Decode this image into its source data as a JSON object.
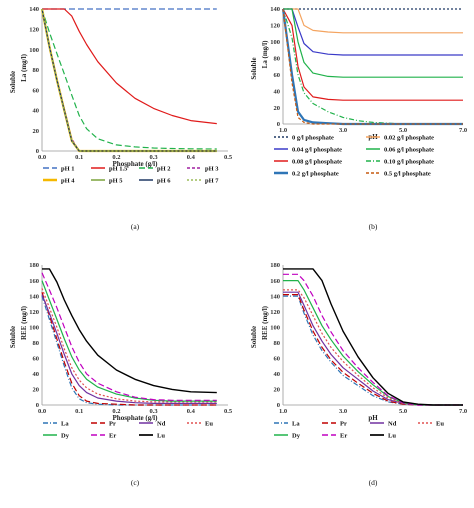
{
  "chart_data": [
    {
      "type": "line",
      "panel_label": "(a)",
      "xlabel": "Phosphate  (g/l)",
      "ylabel_top": "La  (mg/l)",
      "ylabel_bottom": "Soluble",
      "xlim": [
        0,
        0.5
      ],
      "ylim": [
        0,
        140
      ],
      "xticks": [
        "0.0",
        "0.1",
        "0.2",
        "0.3",
        "0.4",
        "0.5"
      ],
      "yticks": [
        "0",
        "20",
        "40",
        "60",
        "80",
        "100",
        "120",
        "140"
      ],
      "x": [
        0,
        0.02,
        0.04,
        0.06,
        0.08,
        0.1,
        0.12,
        0.15,
        0.2,
        0.25,
        0.3,
        0.35,
        0.4,
        0.47
      ],
      "legend_columns": 4,
      "series": [
        {
          "name": "pH 1",
          "color": "#4472c4",
          "dash": "6 3",
          "width": 1.2,
          "values": [
            140,
            140,
            140,
            140,
            140,
            140,
            140,
            140,
            140,
            140,
            140,
            140,
            140,
            140
          ]
        },
        {
          "name": "pH 1.5",
          "color": "#e01a1a",
          "dash": "",
          "width": 1.2,
          "values": [
            140,
            140,
            140,
            140,
            133,
            118,
            105,
            88,
            67,
            52,
            42,
            35,
            30,
            27
          ]
        },
        {
          "name": "pH 2",
          "color": "#21b24b",
          "dash": "6 3",
          "width": 1.2,
          "values": [
            140,
            117,
            96,
            76,
            55,
            35,
            22,
            12,
            6,
            4,
            3,
            2.5,
            2.2,
            2
          ]
        },
        {
          "name": "pH 3",
          "color": "#a020a0",
          "dash": "3 2",
          "width": 1.2,
          "values": [
            140,
            104,
            72,
            42,
            12,
            0,
            0,
            0,
            0,
            0,
            0,
            0,
            0,
            0
          ]
        },
        {
          "name": "pH 4",
          "color": "#f5b800",
          "dash": "",
          "width": 2.2,
          "values": [
            140,
            103,
            70,
            40,
            10,
            0,
            0,
            0,
            0,
            0,
            0,
            0,
            0,
            0
          ]
        },
        {
          "name": "pH 5",
          "color": "#7aa23a",
          "dash": "",
          "width": 1.2,
          "values": [
            140,
            103,
            70,
            40,
            10,
            0,
            0,
            0,
            0,
            0,
            0,
            0,
            0,
            0
          ]
        },
        {
          "name": "pH 6",
          "color": "#1f3864",
          "dash": "",
          "width": 1.2,
          "values": [
            140,
            103,
            70,
            40,
            10,
            0,
            0,
            0,
            0,
            0,
            0,
            0,
            0,
            0
          ]
        },
        {
          "name": "pH 7",
          "color": "#9bbb59",
          "dash": "2 2",
          "width": 1.2,
          "values": [
            140,
            103,
            70,
            40,
            10,
            0,
            0,
            0,
            0,
            0,
            0,
            0,
            0,
            0
          ]
        }
      ]
    },
    {
      "type": "line",
      "panel_label": "(b)",
      "xlabel": "pH",
      "ylabel_top": "La  (mg/l)",
      "ylabel_bottom": "Soluble",
      "xlim": [
        1,
        7
      ],
      "ylim": [
        0,
        140
      ],
      "xticks": [
        "1.0",
        "3.0",
        "5.0",
        "7.0"
      ],
      "yticks": [
        "0",
        "20",
        "40",
        "60",
        "80",
        "100",
        "120",
        "140"
      ],
      "x": [
        1,
        1.3,
        1.5,
        1.7,
        2,
        2.5,
        3,
        3.5,
        4,
        4.5,
        5,
        6,
        7
      ],
      "legend_columns": 2,
      "series": [
        {
          "name": "0 g/l phosphate",
          "color": "#1f3864",
          "dash": "2 2",
          "width": 1.2,
          "values": [
            140,
            140,
            140,
            140,
            140,
            140,
            140,
            140,
            140,
            140,
            140,
            140,
            140
          ]
        },
        {
          "name": "0.02 g/l phosphate",
          "color": "#f4a460",
          "dash": "",
          "width": 1.2,
          "values": [
            140,
            140,
            140,
            120,
            114,
            112,
            111,
            111,
            111,
            111,
            111,
            111,
            111
          ]
        },
        {
          "name": "0.04 g/l phosphate",
          "color": "#3a3ac8",
          "dash": "",
          "width": 1.2,
          "values": [
            140,
            140,
            118,
            98,
            88,
            85,
            84,
            84,
            84,
            84,
            84,
            84,
            84
          ]
        },
        {
          "name": "0.06 g/l phosphate",
          "color": "#21b24b",
          "dash": "",
          "width": 1.2,
          "values": [
            140,
            140,
            100,
            75,
            62,
            58,
            57,
            57,
            57,
            57,
            57,
            57,
            57
          ]
        },
        {
          "name": "0.08 g/l phosphate",
          "color": "#e01a1a",
          "dash": "",
          "width": 1.2,
          "values": [
            140,
            120,
            70,
            45,
            33,
            30,
            29,
            29,
            29,
            29,
            29,
            29,
            29
          ]
        },
        {
          "name": "0.10 g/l phosphate",
          "color": "#21b24b",
          "dash": "5 2 1 2",
          "width": 1.2,
          "values": [
            140,
            105,
            60,
            38,
            25,
            15,
            8,
            4,
            2,
            1,
            0,
            0,
            0
          ]
        },
        {
          "name": "0.2 g/l phosphate",
          "color": "#2e75b6",
          "dash": "",
          "width": 2.2,
          "values": [
            140,
            60,
            15,
            5,
            2,
            1,
            0,
            0,
            0,
            0,
            0,
            0,
            0
          ]
        },
        {
          "name": "0.5 g/l phosphate",
          "color": "#c55a11",
          "dash": "3 2",
          "width": 1.2,
          "values": [
            140,
            50,
            8,
            2,
            0,
            0,
            0,
            0,
            0,
            0,
            0,
            0,
            0
          ]
        }
      ]
    },
    {
      "type": "line",
      "panel_label": "(c)",
      "xlabel": "Phosphate  (g/l)",
      "ylabel_top": "REE  (mg/l)",
      "ylabel_bottom": "Soluble",
      "xlim": [
        0,
        0.5
      ],
      "ylim": [
        0,
        180
      ],
      "xticks": [
        "0.0",
        "0.1",
        "0.2",
        "0.3",
        "0.4",
        "0.5"
      ],
      "yticks": [
        "0",
        "20",
        "40",
        "60",
        "80",
        "100",
        "120",
        "140",
        "160",
        "180"
      ],
      "x": [
        0,
        0.02,
        0.04,
        0.06,
        0.08,
        0.1,
        0.12,
        0.15,
        0.2,
        0.25,
        0.3,
        0.35,
        0.4,
        0.47
      ],
      "legend_columns": 4,
      "series": [
        {
          "name": "La",
          "color": "#2e75b6",
          "dash": "5 2 1 2",
          "width": 1.2,
          "values": [
            140,
            110,
            80,
            50,
            22,
            8,
            3,
            1,
            0,
            0,
            0,
            0,
            0,
            0
          ]
        },
        {
          "name": "Pr",
          "color": "#c00000",
          "dash": "6 3",
          "width": 1.2,
          "values": [
            145,
            115,
            85,
            55,
            28,
            12,
            5,
            2,
            1,
            0,
            0,
            0,
            0,
            0
          ]
        },
        {
          "name": "Nd",
          "color": "#7030a0",
          "dash": "",
          "width": 1.2,
          "values": [
            142,
            118,
            92,
            65,
            40,
            25,
            16,
            9,
            5,
            3,
            2,
            2,
            2,
            2
          ]
        },
        {
          "name": "Eu",
          "color": "#e05050",
          "dash": "2 2",
          "width": 1.2,
          "values": [
            150,
            125,
            100,
            72,
            48,
            32,
            22,
            14,
            8,
            5,
            4,
            4,
            4,
            4
          ]
        },
        {
          "name": "Dy",
          "color": "#21b24b",
          "dash": "",
          "width": 1.2,
          "values": [
            160,
            135,
            110,
            85,
            62,
            45,
            33,
            23,
            14,
            9,
            6,
            5,
            5,
            5
          ]
        },
        {
          "name": "Er",
          "color": "#c000c0",
          "dash": "6 3",
          "width": 1.2,
          "values": [
            170,
            148,
            125,
            100,
            75,
            55,
            40,
            28,
            17,
            10,
            7,
            6,
            6,
            6
          ]
        },
        {
          "name": "Lu",
          "color": "#000000",
          "dash": "",
          "width": 1.4,
          "values": [
            175,
            175,
            158,
            135,
            115,
            97,
            82,
            64,
            45,
            33,
            25,
            20,
            17,
            16
          ]
        }
      ]
    },
    {
      "type": "line",
      "panel_label": "(d)",
      "xlabel": "pH",
      "ylabel_top": "REE  (mg/l)",
      "ylabel_bottom": "Soluble",
      "xlim": [
        1,
        7
      ],
      "ylim": [
        0,
        180
      ],
      "xticks": [
        "1.0",
        "3.0",
        "5.0",
        "7.0"
      ],
      "yticks": [
        "0",
        "20",
        "40",
        "60",
        "80",
        "100",
        "120",
        "140",
        "160",
        "180"
      ],
      "x": [
        1,
        1.3,
        1.5,
        1.7,
        2,
        2.3,
        2.6,
        3,
        3.5,
        4,
        4.5,
        5,
        5.5,
        6,
        7
      ],
      "legend_columns": 4,
      "series": [
        {
          "name": "La",
          "color": "#2e75b6",
          "dash": "5 2 1 2",
          "width": 1.2,
          "values": [
            140,
            140,
            140,
            118,
            90,
            70,
            55,
            38,
            25,
            12,
            4,
            1,
            0,
            0,
            0
          ]
        },
        {
          "name": "Pr",
          "color": "#c00000",
          "dash": "6 3",
          "width": 1.2,
          "values": [
            142,
            142,
            142,
            122,
            95,
            74,
            58,
            42,
            28,
            15,
            5,
            1,
            0,
            0,
            0
          ]
        },
        {
          "name": "Nd",
          "color": "#7030a0",
          "dash": "",
          "width": 1.2,
          "values": [
            145,
            145,
            145,
            128,
            102,
            82,
            65,
            48,
            33,
            18,
            7,
            2,
            0,
            0,
            0
          ]
        },
        {
          "name": "Eu",
          "color": "#e05050",
          "dash": "2 2",
          "width": 1.2,
          "values": [
            148,
            148,
            148,
            138,
            115,
            92,
            74,
            56,
            38,
            22,
            9,
            2,
            0,
            0,
            0
          ]
        },
        {
          "name": "Dy",
          "color": "#21b24b",
          "dash": "",
          "width": 1.2,
          "values": [
            160,
            160,
            160,
            148,
            125,
            102,
            84,
            63,
            43,
            26,
            11,
            3,
            0,
            0,
            0
          ]
        },
        {
          "name": "Er",
          "color": "#c000c0",
          "dash": "6 3",
          "width": 1.2,
          "values": [
            168,
            168,
            168,
            160,
            140,
            115,
            94,
            70,
            48,
            29,
            12,
            3,
            0,
            0,
            0
          ]
        },
        {
          "name": "Lu",
          "color": "#000000",
          "dash": "",
          "width": 1.4,
          "values": [
            175,
            175,
            175,
            175,
            175,
            160,
            130,
            95,
            62,
            35,
            15,
            4,
            1,
            0,
            0
          ]
        }
      ]
    }
  ]
}
